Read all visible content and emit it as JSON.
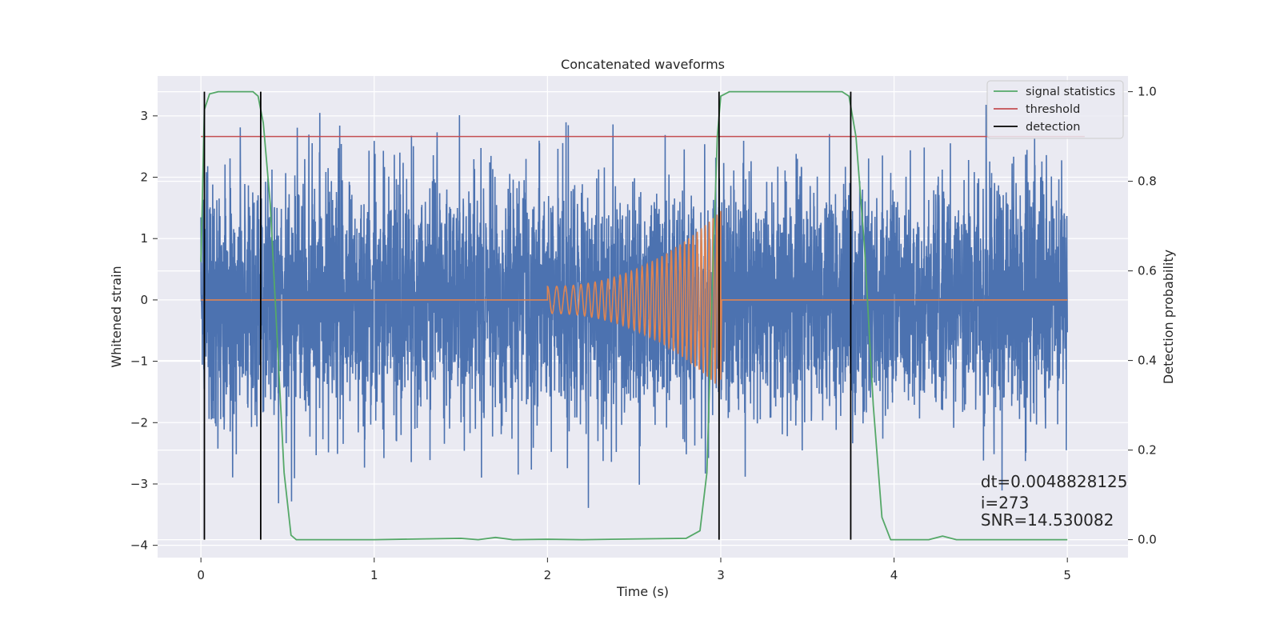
{
  "chart_data": {
    "type": "line",
    "title": "Concatenated waveforms",
    "xlabel": "Time (s)",
    "ylabel": "Whitened strain",
    "y2label": "Detection probability",
    "xlim": [
      -0.25,
      5.35
    ],
    "ylim": [
      -4.2,
      3.65
    ],
    "y2lim": [
      -0.04,
      1.035
    ],
    "xticks": [
      0,
      1,
      2,
      3,
      4,
      5
    ],
    "xtick_labels": [
      "0",
      "1",
      "2",
      "3",
      "4",
      "5"
    ],
    "yticks": [
      -4,
      -3,
      -2,
      -1,
      0,
      1,
      2,
      3
    ],
    "ytick_labels": [
      "−4",
      "−3",
      "−2",
      "−1",
      "0",
      "1",
      "2",
      "3"
    ],
    "y2ticks": [
      0,
      0.2,
      0.4,
      0.6,
      0.8,
      1.0
    ],
    "y2tick_labels": [
      "0.0",
      "0.2",
      "0.4",
      "0.6",
      "0.8",
      "1.0"
    ],
    "grid": true,
    "legend": {
      "placement": "top-right",
      "entries": [
        {
          "label": "signal statistics",
          "color": "#55a868"
        },
        {
          "label": "threshold",
          "color": "#c44e52"
        },
        {
          "label": "detection",
          "color": "#000000"
        }
      ]
    },
    "series": [
      {
        "role": "noise",
        "color": "#4c72b0",
        "x_range": [
          0,
          5
        ],
        "amplitude_range": [
          -3.9,
          3.4
        ]
      },
      {
        "role": "chirp",
        "color": "#dd8452",
        "x_range": [
          0,
          5
        ],
        "chirp_window": [
          2.0,
          3.0
        ],
        "amplitude_range": [
          -1.3,
          1.45
        ]
      },
      {
        "name": "signal statistics",
        "axis": "right",
        "color": "#55a868",
        "points": [
          [
            0,
            0.62
          ],
          [
            0.02,
            0.96
          ],
          [
            0.05,
            0.995
          ],
          [
            0.1,
            1.0
          ],
          [
            0.3,
            1.0
          ],
          [
            0.33,
            0.99
          ],
          [
            0.36,
            0.93
          ],
          [
            0.4,
            0.75
          ],
          [
            0.44,
            0.45
          ],
          [
            0.48,
            0.15
          ],
          [
            0.52,
            0.01
          ],
          [
            0.55,
            0.0
          ],
          [
            1.0,
            0.0
          ],
          [
            1.5,
            0.003
          ],
          [
            1.6,
            0.0
          ],
          [
            1.7,
            0.005
          ],
          [
            1.8,
            0.0
          ],
          [
            2.0,
            0.001
          ],
          [
            2.2,
            0.0
          ],
          [
            2.8,
            0.003
          ],
          [
            2.88,
            0.02
          ],
          [
            2.92,
            0.15
          ],
          [
            2.95,
            0.55
          ],
          [
            2.98,
            0.9
          ],
          [
            3.0,
            0.99
          ],
          [
            3.05,
            1.0
          ],
          [
            3.7,
            1.0
          ],
          [
            3.74,
            0.99
          ],
          [
            3.78,
            0.9
          ],
          [
            3.83,
            0.65
          ],
          [
            3.88,
            0.3
          ],
          [
            3.93,
            0.05
          ],
          [
            3.98,
            0.0
          ],
          [
            4.2,
            0.0
          ],
          [
            4.28,
            0.008
          ],
          [
            4.36,
            0.0
          ],
          [
            5.0,
            0.0
          ]
        ]
      },
      {
        "name": "threshold",
        "axis": "right",
        "color": "#c44e52",
        "points": [
          [
            0,
            0.9
          ],
          [
            5.1,
            0.9
          ]
        ]
      },
      {
        "name": "detection",
        "axis": "right",
        "color": "#000000",
        "x": [
          0.02,
          0.345,
          2.99,
          3.75
        ],
        "y_range": [
          0,
          1
        ]
      }
    ],
    "annotations": [
      {
        "text": "dt=0.0048828125",
        "x": 4.5,
        "y": -3.05
      },
      {
        "text": " i=273",
        "x": 4.5,
        "y": -3.4
      },
      {
        "text": "SNR=14.530082",
        "x": 4.5,
        "y": -3.68
      }
    ]
  }
}
